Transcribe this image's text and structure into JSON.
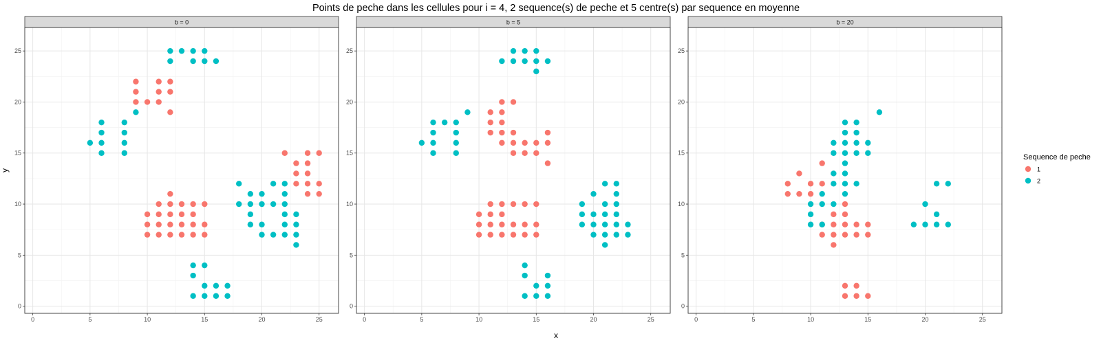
{
  "chart_data": {
    "type": "scatter",
    "title": "Points de peche dans les cellules pour i = 4, 2 sequence(s) de peche et 5 centre(s) par sequence en moyenne",
    "xlabel": "x",
    "ylabel": "y",
    "xlim": [
      -0.7,
      26.7
    ],
    "ylim": [
      -0.7,
      27.3
    ],
    "x_ticks": [
      0,
      5,
      10,
      15,
      20,
      25
    ],
    "y_ticks": [
      0,
      5,
      10,
      15,
      20,
      25
    ],
    "grid": true,
    "legend": {
      "title": "Sequence de peche",
      "position": "right",
      "entries": [
        {
          "label": "1",
          "color": "#F8766D"
        },
        {
          "label": "2",
          "color": "#00BFC4"
        }
      ]
    },
    "facets": [
      {
        "label": "b = 0",
        "series": [
          {
            "name": "1",
            "points": [
              [
                9,
                22
              ],
              [
                9,
                21
              ],
              [
                9,
                20
              ],
              [
                10,
                20
              ],
              [
                11,
                22
              ],
              [
                11,
                21
              ],
              [
                11,
                20
              ],
              [
                12,
                22
              ],
              [
                12,
                21
              ],
              [
                12,
                19
              ],
              [
                22,
                15
              ],
              [
                23,
                14
              ],
              [
                23,
                13
              ],
              [
                23,
                12
              ],
              [
                24,
                15
              ],
              [
                24,
                14
              ],
              [
                24,
                13
              ],
              [
                24,
                12
              ],
              [
                24,
                11
              ],
              [
                25,
                15
              ],
              [
                25,
                12
              ],
              [
                25,
                11
              ],
              [
                10,
                9
              ],
              [
                10,
                8
              ],
              [
                10,
                7
              ],
              [
                11,
                10
              ],
              [
                11,
                9
              ],
              [
                11,
                8
              ],
              [
                11,
                7
              ],
              [
                12,
                11
              ],
              [
                12,
                10
              ],
              [
                12,
                9
              ],
              [
                12,
                8
              ],
              [
                12,
                7
              ],
              [
                13,
                10
              ],
              [
                13,
                9
              ],
              [
                13,
                8
              ],
              [
                13,
                7
              ],
              [
                14,
                10
              ],
              [
                14,
                9
              ],
              [
                14,
                8
              ],
              [
                14,
                7
              ],
              [
                15,
                10
              ],
              [
                15,
                8
              ],
              [
                15,
                7
              ]
            ]
          },
          {
            "name": "2",
            "points": [
              [
                12,
                25
              ],
              [
                12,
                24
              ],
              [
                13,
                25
              ],
              [
                14,
                25
              ],
              [
                14,
                24
              ],
              [
                15,
                25
              ],
              [
                15,
                24
              ],
              [
                16,
                24
              ],
              [
                5,
                16
              ],
              [
                6,
                18
              ],
              [
                6,
                17
              ],
              [
                6,
                16
              ],
              [
                6,
                15
              ],
              [
                8,
                18
              ],
              [
                8,
                17
              ],
              [
                8,
                16
              ],
              [
                8,
                15
              ],
              [
                9,
                19
              ],
              [
                18,
                12
              ],
              [
                18,
                10
              ],
              [
                19,
                11
              ],
              [
                19,
                10
              ],
              [
                19,
                9
              ],
              [
                19,
                8
              ],
              [
                20,
                11
              ],
              [
                20,
                10
              ],
              [
                20,
                8
              ],
              [
                20,
                7
              ],
              [
                21,
                12
              ],
              [
                21,
                10
              ],
              [
                21,
                7
              ],
              [
                22,
                12
              ],
              [
                22,
                11
              ],
              [
                22,
                10
              ],
              [
                22,
                9
              ],
              [
                22,
                8
              ],
              [
                22,
                7
              ],
              [
                23,
                9
              ],
              [
                23,
                8
              ],
              [
                23,
                7
              ],
              [
                23,
                6
              ],
              [
                14,
                4
              ],
              [
                14,
                3
              ],
              [
                14,
                1
              ],
              [
                15,
                4
              ],
              [
                15,
                2
              ],
              [
                15,
                1
              ],
              [
                16,
                2
              ],
              [
                16,
                1
              ],
              [
                17,
                2
              ],
              [
                17,
                1
              ]
            ]
          }
        ]
      },
      {
        "label": "b = 5",
        "series": [
          {
            "name": "1",
            "points": [
              [
                11,
                19
              ],
              [
                11,
                18
              ],
              [
                11,
                17
              ],
              [
                12,
                20
              ],
              [
                12,
                19
              ],
              [
                12,
                18
              ],
              [
                12,
                17
              ],
              [
                12,
                16
              ],
              [
                13,
                20
              ],
              [
                13,
                17
              ],
              [
                13,
                16
              ],
              [
                13,
                15
              ],
              [
                14,
                16
              ],
              [
                14,
                15
              ],
              [
                15,
                16
              ],
              [
                15,
                15
              ],
              [
                16,
                17
              ],
              [
                16,
                16
              ],
              [
                16,
                14
              ],
              [
                10,
                9
              ],
              [
                10,
                8
              ],
              [
                10,
                7
              ],
              [
                11,
                10
              ],
              [
                11,
                9
              ],
              [
                11,
                8
              ],
              [
                11,
                7
              ],
              [
                12,
                10
              ],
              [
                12,
                9
              ],
              [
                12,
                8
              ],
              [
                12,
                7
              ],
              [
                13,
                10
              ],
              [
                13,
                8
              ],
              [
                13,
                7
              ],
              [
                14,
                10
              ],
              [
                14,
                8
              ],
              [
                14,
                7
              ],
              [
                15,
                10
              ],
              [
                15,
                8
              ],
              [
                15,
                7
              ]
            ]
          },
          {
            "name": "2",
            "points": [
              [
                12,
                24
              ],
              [
                13,
                25
              ],
              [
                13,
                24
              ],
              [
                14,
                25
              ],
              [
                14,
                24
              ],
              [
                15,
                25
              ],
              [
                15,
                24
              ],
              [
                15,
                23
              ],
              [
                16,
                24
              ],
              [
                5,
                16
              ],
              [
                6,
                18
              ],
              [
                6,
                17
              ],
              [
                6,
                16
              ],
              [
                6,
                15
              ],
              [
                7,
                18
              ],
              [
                8,
                18
              ],
              [
                8,
                17
              ],
              [
                8,
                16
              ],
              [
                8,
                15
              ],
              [
                9,
                19
              ],
              [
                19,
                10
              ],
              [
                19,
                9
              ],
              [
                19,
                8
              ],
              [
                20,
                11
              ],
              [
                20,
                9
              ],
              [
                20,
                8
              ],
              [
                20,
                7
              ],
              [
                21,
                12
              ],
              [
                21,
                10
              ],
              [
                21,
                9
              ],
              [
                21,
                8
              ],
              [
                21,
                7
              ],
              [
                21,
                6
              ],
              [
                22,
                12
              ],
              [
                22,
                11
              ],
              [
                22,
                10
              ],
              [
                22,
                9
              ],
              [
                22,
                8
              ],
              [
                22,
                7
              ],
              [
                23,
                8
              ],
              [
                23,
                7
              ],
              [
                14,
                4
              ],
              [
                14,
                3
              ],
              [
                14,
                1
              ],
              [
                15,
                2
              ],
              [
                15,
                1
              ],
              [
                16,
                3
              ],
              [
                16,
                2
              ],
              [
                16,
                1
              ]
            ]
          }
        ]
      },
      {
        "label": "b = 20",
        "series": [
          {
            "name": "1",
            "points": [
              [
                8,
                12
              ],
              [
                8,
                11
              ],
              [
                9,
                13
              ],
              [
                9,
                11
              ],
              [
                10,
                12
              ],
              [
                10,
                11
              ],
              [
                11,
                14
              ],
              [
                11,
                12
              ],
              [
                11,
                8
              ],
              [
                11,
                7
              ],
              [
                12,
                9
              ],
              [
                12,
                8
              ],
              [
                12,
                7
              ],
              [
                12,
                6
              ],
              [
                13,
                10
              ],
              [
                13,
                9
              ],
              [
                13,
                8
              ],
              [
                13,
                7
              ],
              [
                14,
                8
              ],
              [
                14,
                7
              ],
              [
                15,
                8
              ],
              [
                15,
                7
              ],
              [
                13,
                2
              ],
              [
                13,
                1
              ],
              [
                14,
                2
              ],
              [
                14,
                1
              ],
              [
                15,
                1
              ]
            ]
          },
          {
            "name": "2",
            "points": [
              [
                12,
                16
              ],
              [
                12,
                15
              ],
              [
                12,
                13
              ],
              [
                12,
                12
              ],
              [
                13,
                18
              ],
              [
                13,
                17
              ],
              [
                13,
                16
              ],
              [
                13,
                15
              ],
              [
                13,
                14
              ],
              [
                13,
                13
              ],
              [
                13,
                12
              ],
              [
                13,
                11
              ],
              [
                14,
                18
              ],
              [
                14,
                17
              ],
              [
                14,
                16
              ],
              [
                14,
                15
              ],
              [
                14,
                12
              ],
              [
                15,
                16
              ],
              [
                15,
                15
              ],
              [
                16,
                19
              ],
              [
                10,
                10
              ],
              [
                10,
                9
              ],
              [
                10,
                8
              ],
              [
                11,
                11
              ],
              [
                11,
                10
              ],
              [
                11,
                8
              ],
              [
                12,
                10
              ],
              [
                19,
                8
              ],
              [
                20,
                10
              ],
              [
                20,
                8
              ],
              [
                21,
                12
              ],
              [
                21,
                9
              ],
              [
                21,
                8
              ],
              [
                22,
                12
              ],
              [
                22,
                8
              ]
            ]
          }
        ]
      }
    ]
  }
}
